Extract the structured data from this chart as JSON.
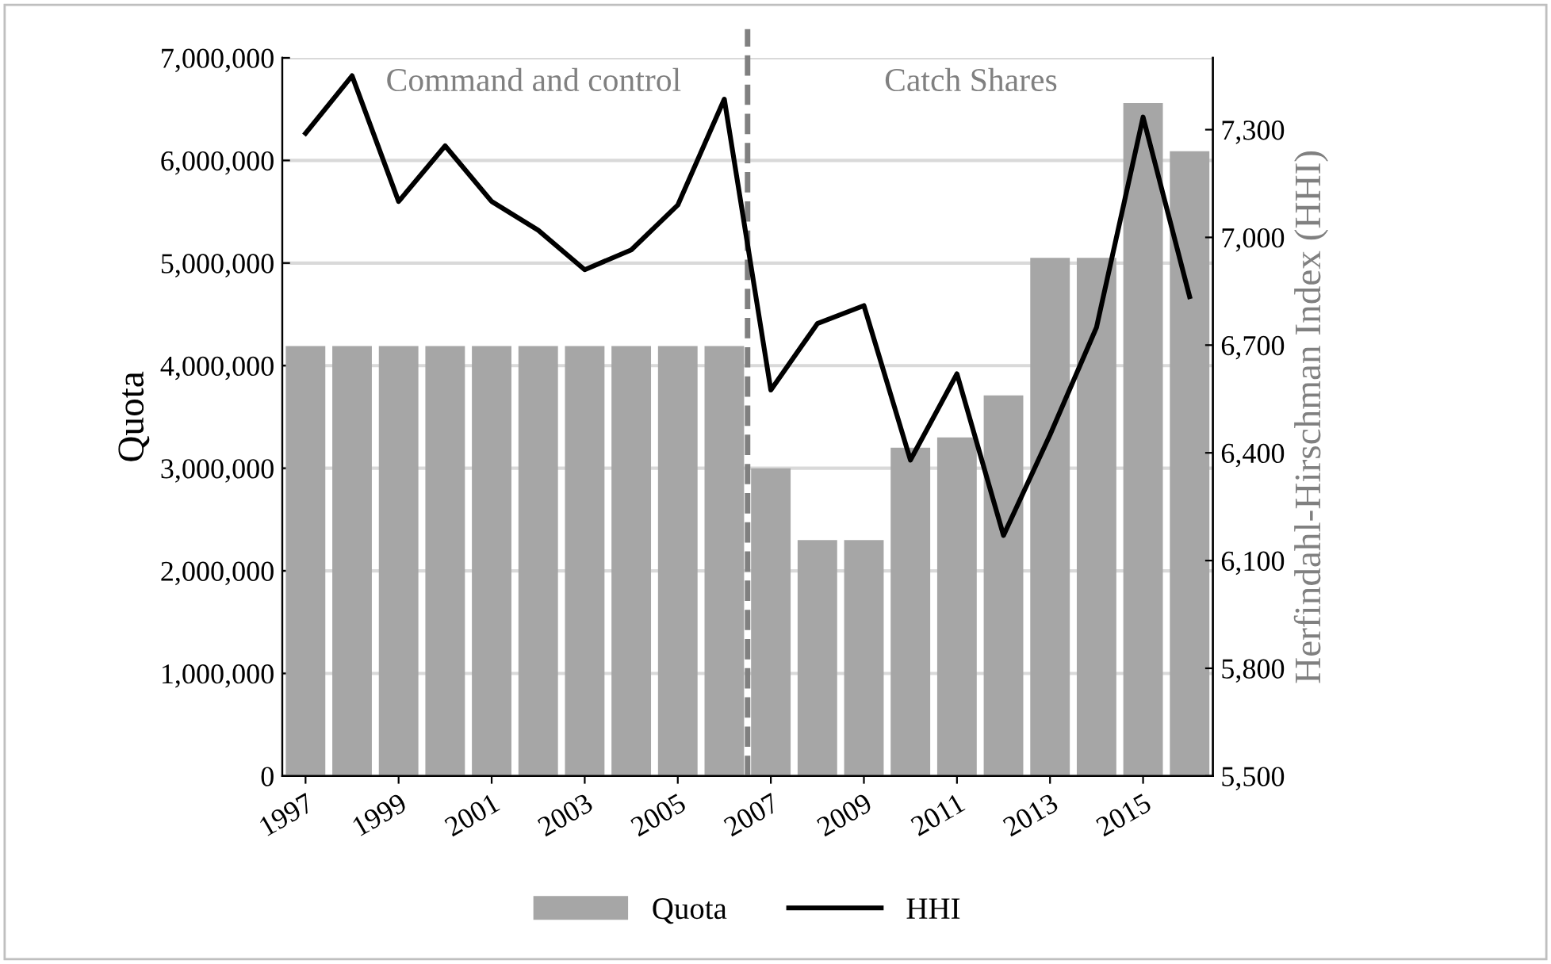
{
  "chart_data": {
    "type": "bar",
    "x": [
      1997,
      1998,
      1999,
      2000,
      2001,
      2002,
      2003,
      2004,
      2005,
      2006,
      2007,
      2008,
      2009,
      2010,
      2011,
      2012,
      2013,
      2014,
      2015,
      2016
    ],
    "series": [
      {
        "name": "Quota",
        "color": "#a6a6a6",
        "values": [
          4190000,
          4190000,
          4190000,
          4190000,
          4190000,
          4190000,
          4190000,
          4190000,
          4190000,
          4190000,
          3000000,
          2300000,
          2300000,
          3200000,
          3300000,
          3710000,
          5050000,
          5050000,
          6560000,
          6090000
        ]
      },
      {
        "name": "HHI",
        "type": "line",
        "axis": "y2",
        "color": "#000000",
        "values": [
          7290,
          7450,
          7100,
          7255,
          7100,
          7020,
          6910,
          6965,
          7090,
          7385,
          6575,
          6760,
          6810,
          6380,
          6620,
          6170,
          6450,
          6750,
          7335,
          6835
        ]
      }
    ],
    "xlim": [
      1996.5,
      2016.5
    ],
    "xticks": [
      1997,
      1999,
      2001,
      2003,
      2005,
      2007,
      2009,
      2011,
      2013,
      2015
    ],
    "ylabel": "Quota",
    "y2label": "Herfindahl-Hirschman Index (HHI)",
    "ylim": [
      0,
      7000000
    ],
    "yticks": [
      {
        "value": 0,
        "label": "0"
      },
      {
        "value": 1000000,
        "label": "1,000,000"
      },
      {
        "value": 2000000,
        "label": "2,000,000"
      },
      {
        "value": 3000000,
        "label": "3,000,000"
      },
      {
        "value": 4000000,
        "label": "4,000,000"
      },
      {
        "value": 5000000,
        "label": "5,000,000"
      },
      {
        "value": 6000000,
        "label": "6,000,000"
      },
      {
        "value": 7000000,
        "label": "7,000,000"
      }
    ],
    "y2lim": [
      5500,
      7500
    ],
    "y2ticks": [
      {
        "value": 5500,
        "label": "5,500"
      },
      {
        "value": 5800,
        "label": "5,800"
      },
      {
        "value": 6100,
        "label": "6,100"
      },
      {
        "value": 6400,
        "label": "6,400"
      },
      {
        "value": 6700,
        "label": "6,700"
      },
      {
        "value": 7000,
        "label": "7,000"
      },
      {
        "value": 7300,
        "label": "7,300"
      }
    ],
    "ref_lines": [
      {
        "axis": "x",
        "value": 2006.5,
        "color": "#808080",
        "line_style": "dashed"
      }
    ],
    "annotations": [
      "Command and control",
      "Catch Shares"
    ],
    "grid": "y",
    "legend": "bottom",
    "line_style": "solid",
    "marker": "none"
  }
}
